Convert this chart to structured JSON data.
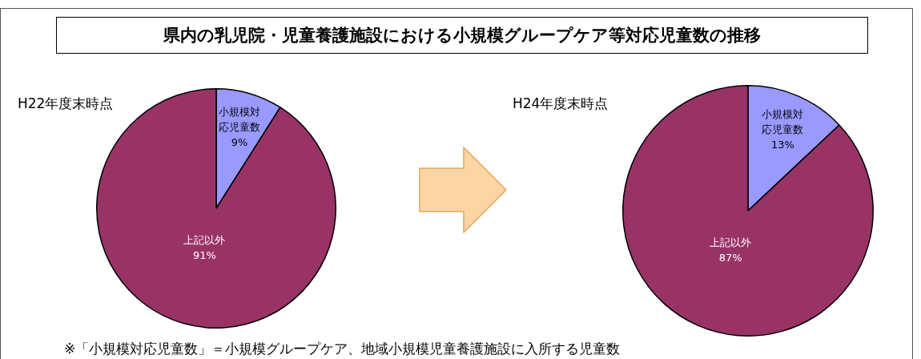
{
  "chart_data": [
    {
      "type": "pie",
      "title": "県内の乳児院・児童養護施設における小規模グループケア等対応児童数の推移",
      "subtitle": "H22年度末時点",
      "categories": [
        "小規模対応児童数",
        "上記以外"
      ],
      "values": [
        9,
        91
      ],
      "value_labels": [
        "9%",
        "91%"
      ],
      "colors": [
        "#9999ff",
        "#993366"
      ],
      "legend": false,
      "annotations": [
        "※「小規模対応児童数」＝小規模グループケア、地域小規模児童養護施設に入所する児童数"
      ]
    },
    {
      "type": "pie",
      "subtitle": "H24年度末時点",
      "categories": [
        "小規模対応児童数",
        "上記以外"
      ],
      "values": [
        13,
        87
      ],
      "value_labels": [
        "13%",
        "87%"
      ],
      "colors": [
        "#9999ff",
        "#993366"
      ],
      "legend": false
    }
  ]
}
